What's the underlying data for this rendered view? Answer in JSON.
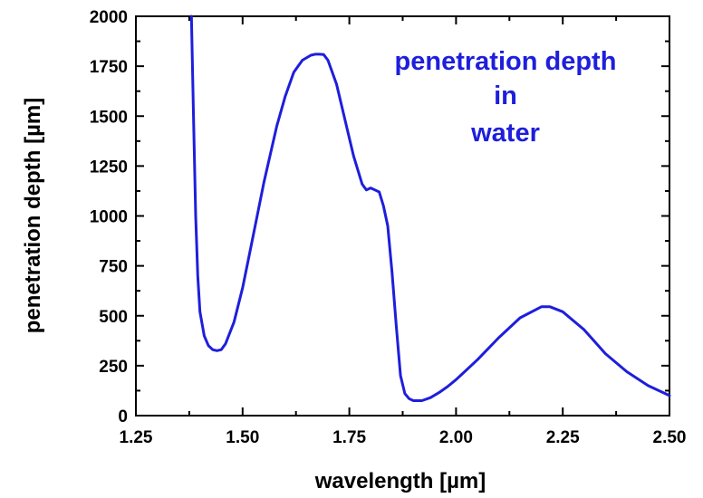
{
  "chart_data": {
    "type": "line",
    "title": "",
    "xlabel": "wavelength [µm]",
    "ylabel": "penetration depth [µm]",
    "xlim": [
      1.25,
      2.5
    ],
    "ylim": [
      0,
      2000
    ],
    "x_ticks": [
      1.25,
      1.5,
      1.75,
      2.0,
      2.25,
      2.5
    ],
    "x_tick_labels": [
      "1.25",
      "1.50",
      "1.75",
      "2.00",
      "2.25",
      "2.50"
    ],
    "y_ticks": [
      0,
      250,
      500,
      750,
      1000,
      1250,
      1500,
      1750,
      2000
    ],
    "y_tick_labels": [
      "0",
      "250",
      "500",
      "750",
      "1000",
      "1250",
      "1500",
      "1750",
      "2000"
    ],
    "grid": false,
    "line_color": "#1e1edc",
    "annotation": {
      "lines": [
        "penetration depth",
        "in",
        "water"
      ],
      "color": "#1e1edc"
    },
    "series": [
      {
        "x": [
          1.38,
          1.385,
          1.39,
          1.395,
          1.4,
          1.41,
          1.42,
          1.43,
          1.44,
          1.45,
          1.46,
          1.48,
          1.5,
          1.52,
          1.55,
          1.58,
          1.6,
          1.62,
          1.64,
          1.66,
          1.67,
          1.68,
          1.69,
          1.7,
          1.72,
          1.74,
          1.76,
          1.78,
          1.79,
          1.8,
          1.81,
          1.82,
          1.83,
          1.84,
          1.85,
          1.86,
          1.87,
          1.88,
          1.89,
          1.9,
          1.92,
          1.94,
          1.96,
          1.98,
          2.0,
          2.05,
          2.1,
          2.15,
          2.2,
          2.22,
          2.25,
          2.3,
          2.35,
          2.4,
          2.45,
          2.5
        ],
        "y": [
          2000,
          1500,
          1000,
          700,
          520,
          400,
          350,
          330,
          325,
          330,
          360,
          470,
          640,
          850,
          1170,
          1450,
          1600,
          1720,
          1780,
          1805,
          1810,
          1810,
          1808,
          1780,
          1660,
          1480,
          1300,
          1160,
          1130,
          1140,
          1130,
          1120,
          1050,
          950,
          720,
          450,
          200,
          110,
          85,
          75,
          75,
          90,
          115,
          145,
          180,
          280,
          390,
          490,
          545,
          545,
          520,
          430,
          310,
          220,
          150,
          100
        ]
      }
    ]
  }
}
